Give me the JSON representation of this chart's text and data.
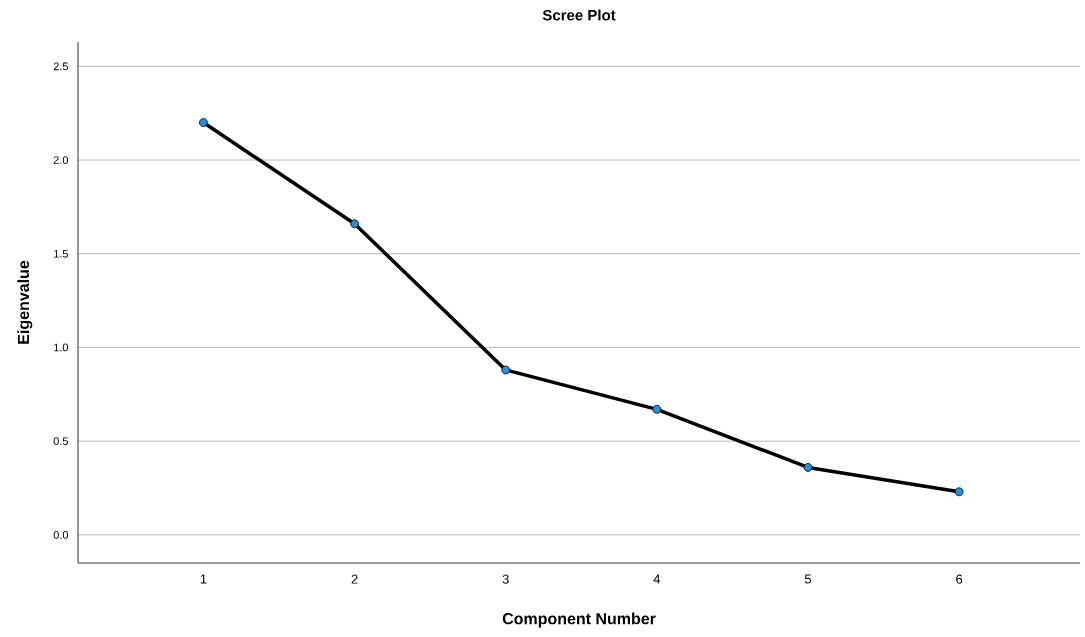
{
  "chart_data": {
    "type": "line",
    "title": "Scree Plot",
    "xlabel": "Component Number",
    "ylabel": "Eigenvalue",
    "x": [
      1,
      2,
      3,
      4,
      5,
      6
    ],
    "values": [
      2.2,
      1.66,
      0.88,
      0.67,
      0.36,
      0.23
    ],
    "color": "#000000",
    "xlim": [
      0.17,
      6.8
    ],
    "ylim": [
      -0.15,
      2.63
    ],
    "xticks": [
      1,
      2,
      3,
      4,
      5,
      6
    ],
    "yticks": [
      {
        "value": 0,
        "label": "0.0"
      },
      {
        "value": 0.5,
        "label": "0.5"
      },
      {
        "value": 1,
        "label": "1.0"
      },
      {
        "value": 1.5,
        "label": "1.5"
      },
      {
        "value": 2,
        "label": "2.0"
      },
      {
        "value": 2.5,
        "label": "2.5"
      }
    ],
    "grid": "y",
    "marker": "circle",
    "line_style": "solid"
  }
}
